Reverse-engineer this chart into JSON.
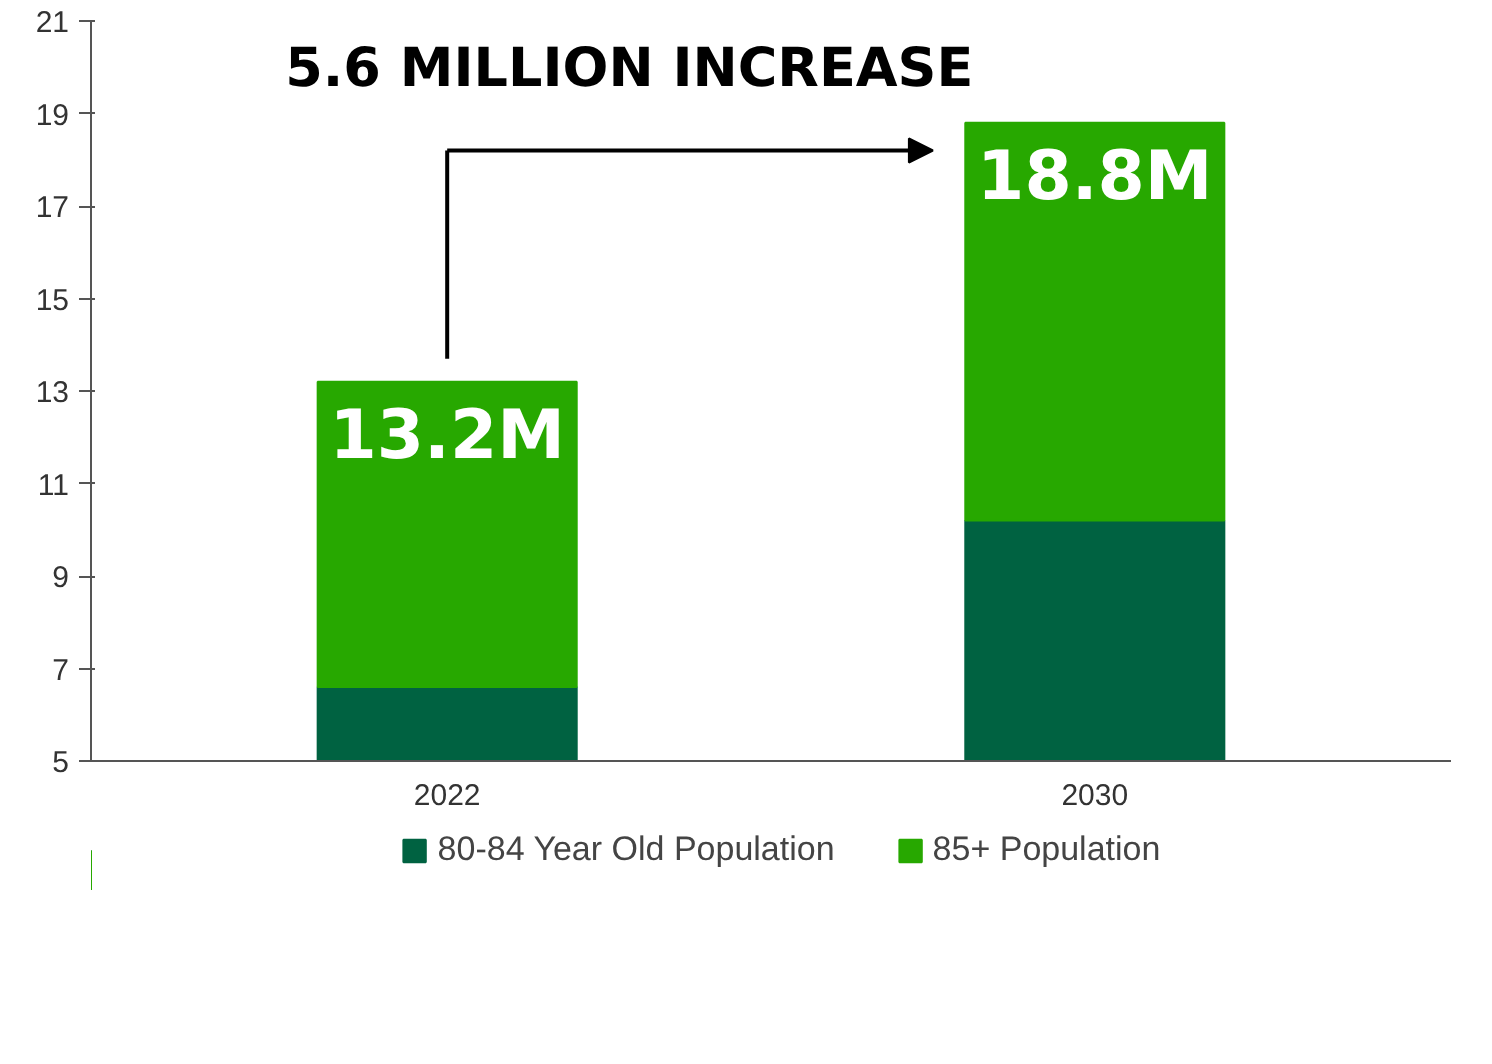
{
  "chart_data": {
    "type": "bar",
    "stacked": true,
    "categories": [
      "2022",
      "2030"
    ],
    "series": [
      {
        "name": "80-84 Year Old Population",
        "color": "#006241",
        "values": [
          6.6,
          10.2
        ]
      },
      {
        "name": "85+ Population",
        "color": "#27a800",
        "values": [
          6.6,
          8.6
        ]
      }
    ],
    "totals": [
      "13.2M",
      "18.8M"
    ],
    "annotations": [
      "5.6 MILLION INCREASE"
    ],
    "ylim": [
      5,
      21
    ],
    "yticks": [
      5,
      7,
      9,
      11,
      13,
      15,
      17,
      19,
      21
    ],
    "grid": false,
    "legend": "bottom"
  }
}
